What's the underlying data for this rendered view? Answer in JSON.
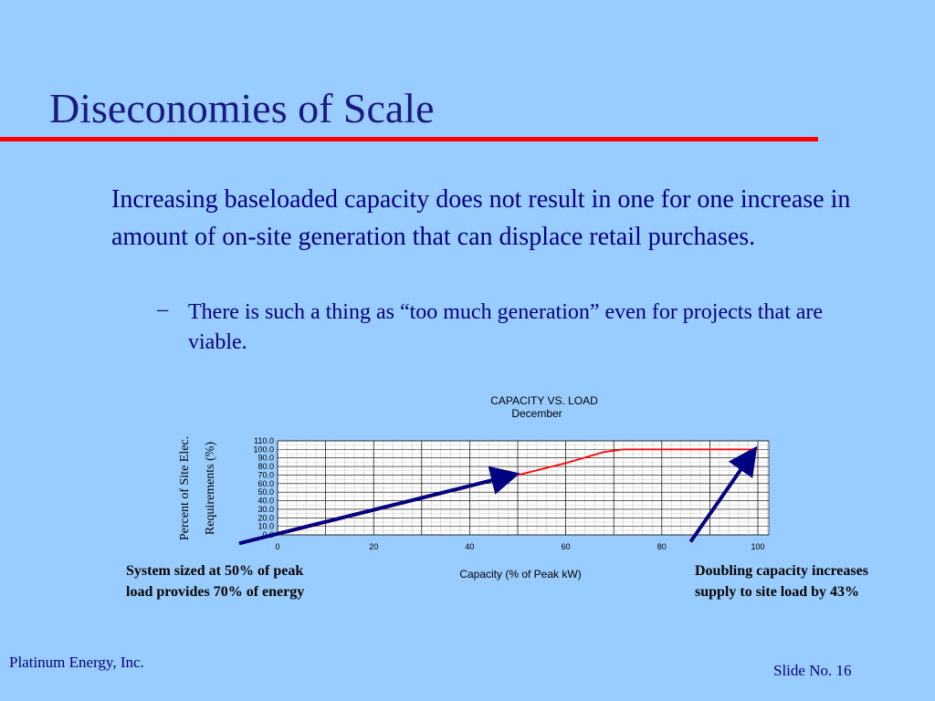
{
  "slide": {
    "title": "Diseconomies of Scale",
    "bullet": "Increasing baseloaded capacity does not result in one for one increase in amount of on-site generation that can displace retail purchases.",
    "sub_dash": "–",
    "sub_bullet": "There is such a thing as “too much generation” even for projects that are viable.",
    "footer_left": "Platinum Energy, Inc.",
    "footer_right": "Slide No. 16",
    "accent_color": "#ff0000",
    "text_color": "#000080",
    "background_color": "#99ccff"
  },
  "annotations": {
    "left": "System sized at 50% of peak load provides 70% of energy",
    "right": "Doubling capacity increases supply to site load by 43%"
  },
  "chart_data": {
    "type": "line",
    "title": "CAPACITY VS. LOAD",
    "subtitle": "December",
    "xlabel": "Capacity (% of Peak kW)",
    "ylabel_lines": [
      "Percent of Site Elec.",
      "Requirements (%)"
    ],
    "xlim": [
      0,
      100
    ],
    "ylim": [
      0,
      110
    ],
    "xticks": [
      0,
      20,
      40,
      60,
      80,
      100
    ],
    "yticks": [
      "0.0",
      "10.0",
      "20.0",
      "30.0",
      "40.0",
      "50.0",
      "60.0",
      "70.0",
      "80.0",
      "90.0",
      "100.0",
      "110.0"
    ],
    "grid": true,
    "series": [
      {
        "color": "#ff0000",
        "x": [
          0,
          10,
          20,
          30,
          40,
          50,
          60,
          68,
          72,
          80,
          90,
          100
        ],
        "y": [
          0,
          14,
          28,
          42,
          56,
          70,
          84,
          97,
          100,
          100,
          100,
          100
        ]
      }
    ],
    "arrows": [
      {
        "from": [
          -8,
          -10
        ],
        "to": [
          49,
          70
        ],
        "color": "#000080"
      },
      {
        "from": [
          86,
          -8
        ],
        "to": [
          99,
          97
        ],
        "color": "#000080"
      }
    ]
  }
}
